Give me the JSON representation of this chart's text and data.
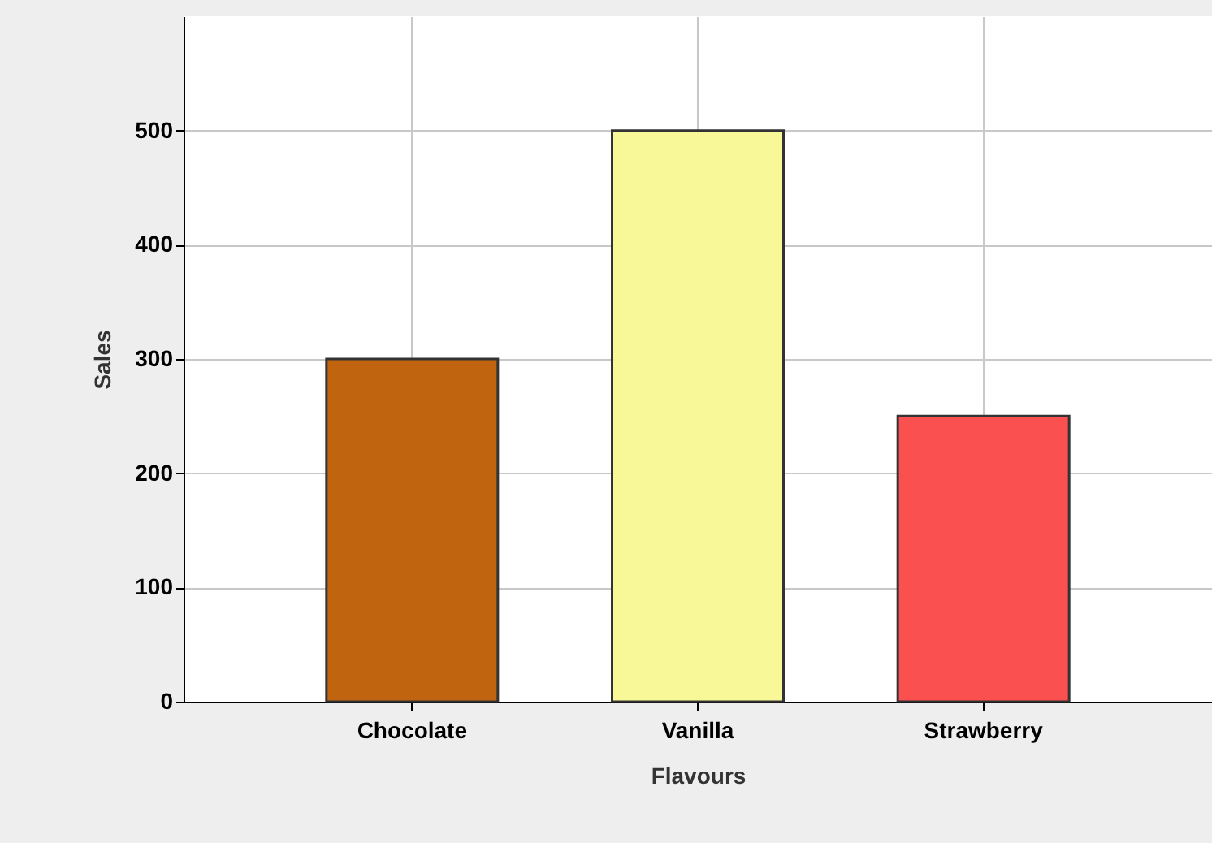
{
  "chart_data": {
    "type": "bar",
    "xlabel": "Flavours",
    "ylabel": "Sales",
    "categories": [
      "Chocolate",
      "Vanilla",
      "Strawberry"
    ],
    "values": [
      300,
      500,
      250
    ],
    "colors": [
      "#c0640f",
      "#f8f899",
      "#fa5050"
    ],
    "ylim": [
      0,
      600
    ],
    "yticks": [
      0,
      100,
      200,
      300,
      400,
      500
    ],
    "grid": true
  }
}
